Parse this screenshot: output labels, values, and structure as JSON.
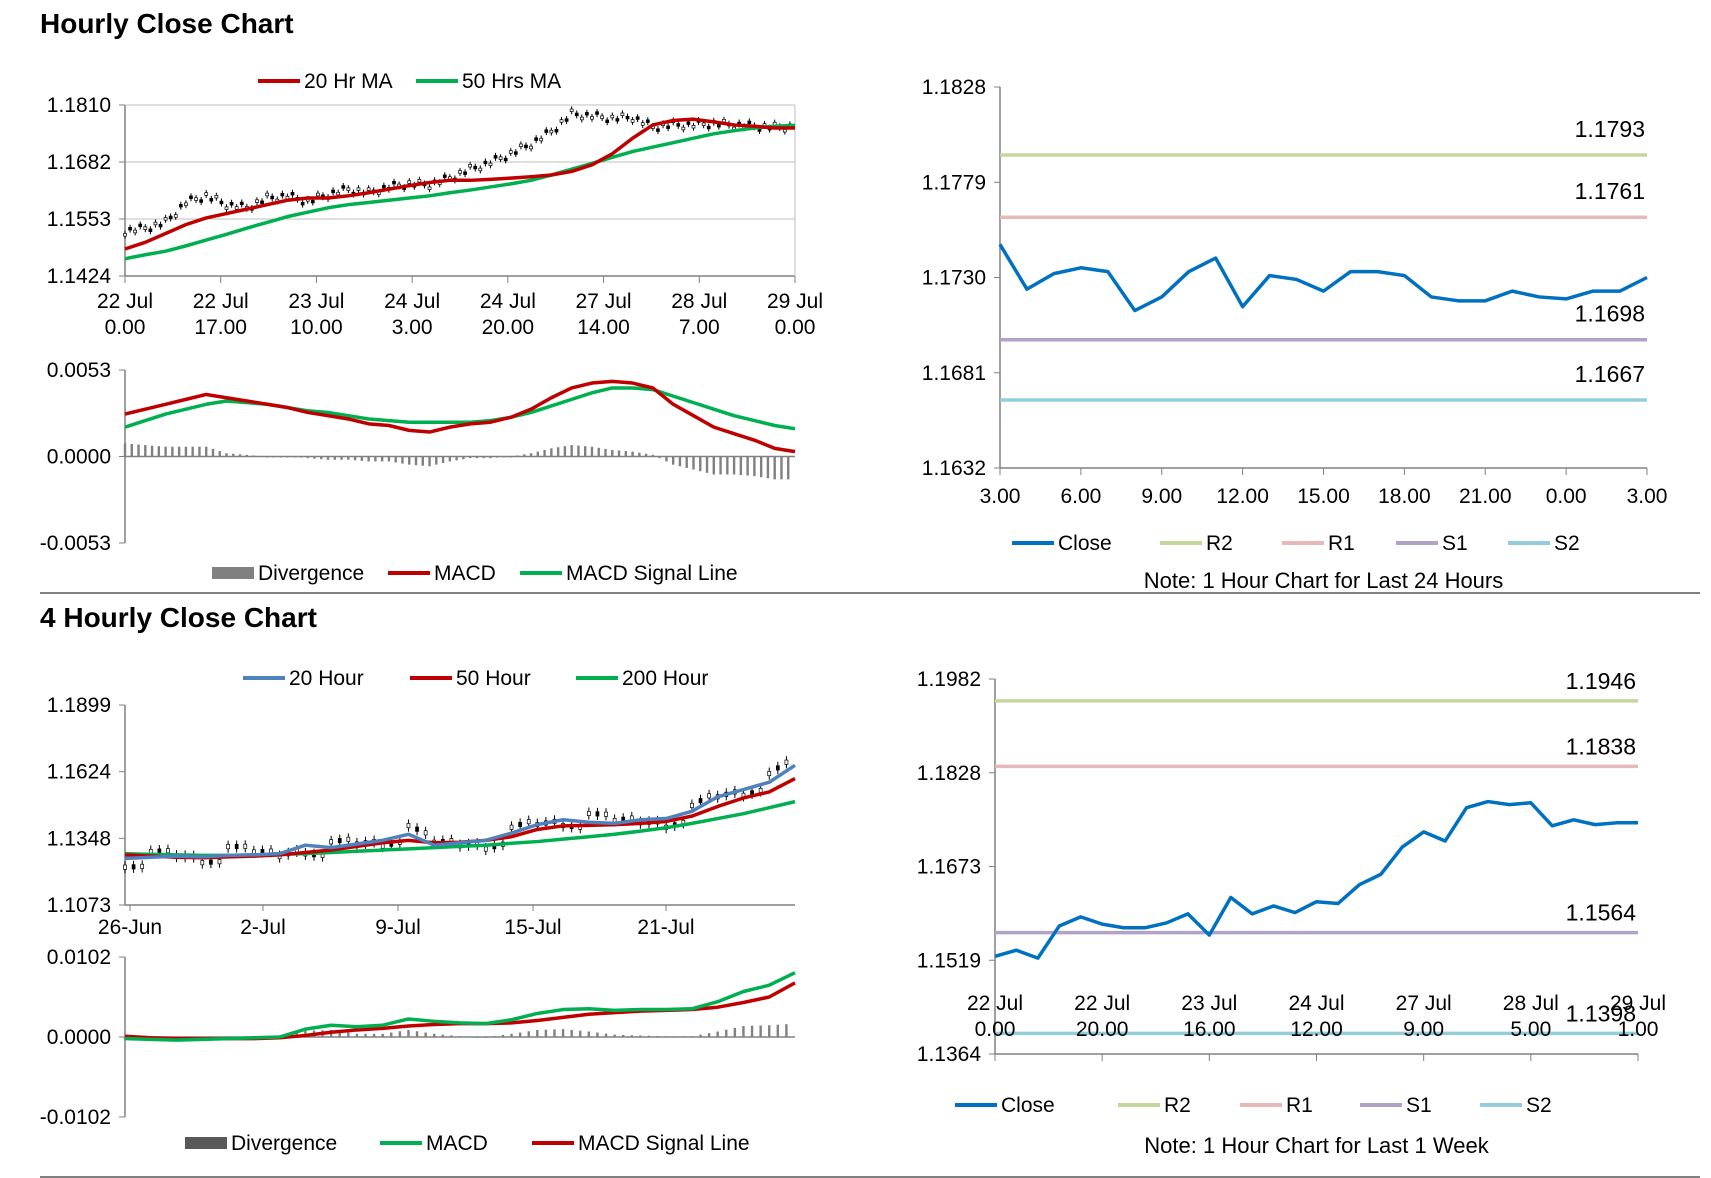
{
  "sections": {
    "hourly_title": "Hourly Close Chart",
    "four_hourly_title": "4 Hourly Close Chart"
  },
  "colors": {
    "ma20": "#c00000",
    "ma50": "#00b050",
    "close": "#0070c0",
    "r2": "#c3d69b",
    "r1": "#e6b9b8",
    "s1": "#b3a2c7",
    "s2": "#93cddd",
    "blue20": "#4f81bd",
    "divergence": "#808080",
    "axis": "#808080"
  },
  "chart_data": [
    {
      "id": "hourly-price",
      "type": "line",
      "title": "",
      "legend": [
        "20 Hr MA",
        "50 Hrs MA"
      ],
      "legend_placement": "top",
      "y_ticks": [
        "1.1810",
        "1.1682",
        "1.1553",
        "1.1424"
      ],
      "ylim": [
        1.1424,
        1.181
      ],
      "x_ticks": [
        [
          "22 Jul",
          "0.00"
        ],
        [
          "22 Jul",
          "17.00"
        ],
        [
          "23 Jul",
          "10.00"
        ],
        [
          "24 Jul",
          "3.00"
        ],
        [
          "24 Jul",
          "20.00"
        ],
        [
          "27 Jul",
          "14.00"
        ],
        [
          "28 Jul",
          "7.00"
        ],
        [
          "29 Jul",
          "0.00"
        ]
      ],
      "grid": true,
      "series": [
        {
          "name": "20 Hr MA",
          "values": [
            1.1485,
            1.15,
            1.152,
            1.154,
            1.1555,
            1.1565,
            1.1575,
            1.1585,
            1.1595,
            1.16,
            1.16,
            1.1605,
            1.1612,
            1.162,
            1.1628,
            1.1635,
            1.164,
            1.164,
            1.1642,
            1.1645,
            1.1648,
            1.1652,
            1.166,
            1.1675,
            1.17,
            1.1735,
            1.1765,
            1.1775,
            1.1778,
            1.1772,
            1.1765,
            1.1762,
            1.1758,
            1.1758
          ]
        },
        {
          "name": "50 Hrs MA",
          "values": [
            1.1463,
            1.1472,
            1.148,
            1.1492,
            1.1505,
            1.1518,
            1.1532,
            1.1545,
            1.1558,
            1.1568,
            1.1578,
            1.1585,
            1.159,
            1.1595,
            1.16,
            1.1605,
            1.1612,
            1.1618,
            1.1625,
            1.1632,
            1.164,
            1.1652,
            1.1665,
            1.1678,
            1.1692,
            1.1705,
            1.1715,
            1.1725,
            1.1735,
            1.1745,
            1.1752,
            1.1758,
            1.1762,
            1.1764
          ]
        },
        {
          "name": "candles",
          "values": [
            1.1525,
            1.1532,
            1.1545,
            1.159,
            1.1605,
            1.1585,
            1.1578,
            1.16,
            1.1605,
            1.1592,
            1.1608,
            1.162,
            1.1612,
            1.1625,
            1.1632,
            1.163,
            1.1645,
            1.1665,
            1.168,
            1.17,
            1.1722,
            1.175,
            1.179,
            1.1785,
            1.178,
            1.1782,
            1.176,
            1.1765,
            1.1765,
            1.1768,
            1.1765,
            1.1762,
            1.176,
            1.176
          ]
        }
      ]
    },
    {
      "id": "hourly-macd",
      "type": "line",
      "title": "",
      "legend": [
        "Divergence",
        "MACD",
        "MACD Signal Line"
      ],
      "legend_placement": "bottom",
      "y_ticks": [
        "0.0053",
        "0.0000",
        "-0.0053"
      ],
      "ylim": [
        -0.0053,
        0.0053
      ],
      "series": [
        {
          "name": "MACD",
          "values": [
            0.0026,
            0.0029,
            0.0032,
            0.0035,
            0.0038,
            0.0036,
            0.0034,
            0.0032,
            0.003,
            0.0027,
            0.0025,
            0.0023,
            0.002,
            0.0019,
            0.0016,
            0.0015,
            0.0018,
            0.002,
            0.0021,
            0.0024,
            0.0029,
            0.0036,
            0.0042,
            0.0045,
            0.0046,
            0.0045,
            0.0042,
            0.0032,
            0.0025,
            0.0018,
            0.0014,
            0.001,
            0.0005,
            0.0003
          ]
        },
        {
          "name": "MACD Signal Line",
          "values": [
            0.0018,
            0.0022,
            0.0026,
            0.0029,
            0.0032,
            0.0034,
            0.0033,
            0.0032,
            0.003,
            0.0028,
            0.0027,
            0.0025,
            0.0023,
            0.0022,
            0.0021,
            0.0021,
            0.0021,
            0.0021,
            0.0022,
            0.0024,
            0.0027,
            0.0031,
            0.0035,
            0.0039,
            0.0042,
            0.0042,
            0.0041,
            0.0037,
            0.0033,
            0.0029,
            0.0025,
            0.0022,
            0.0019,
            0.0017
          ]
        },
        {
          "name": "Divergence",
          "values": [
            0.0008,
            0.0007,
            0.0006,
            0.0006,
            0.0006,
            0.0002,
            0.0001,
            0.0,
            0.0,
            -0.0001,
            -0.0002,
            -0.0002,
            -0.0003,
            -0.0003,
            -0.0005,
            -0.0006,
            -0.0003,
            -0.0001,
            -0.0001,
            0.0,
            0.0002,
            0.0005,
            0.0007,
            0.0006,
            0.0004,
            0.0003,
            0.0001,
            -0.0005,
            -0.0008,
            -0.0011,
            -0.0011,
            -0.0012,
            -0.0014,
            -0.0014
          ]
        }
      ]
    },
    {
      "id": "hourly-close-24h",
      "type": "line",
      "title": "",
      "note": "Note: 1 Hour Chart for Last 24 Hours",
      "legend": [
        "Close",
        "R2",
        "R1",
        "S1",
        "S2"
      ],
      "legend_placement": "bottom",
      "y_ticks": [
        "1.1828",
        "1.1779",
        "1.1730",
        "1.1681",
        "1.1632"
      ],
      "ylim": [
        1.1632,
        1.1828
      ],
      "x_ticks": [
        "3.00",
        "6.00",
        "9.00",
        "12.00",
        "15.00",
        "18.00",
        "21.00",
        "0.00",
        "3.00"
      ],
      "levels": {
        "R2": "1.1793",
        "R1": "1.1761",
        "S1": "1.1698",
        "S2": "1.1667"
      },
      "series": [
        {
          "name": "Close",
          "x": [
            3,
            4,
            5,
            6,
            7,
            8,
            9,
            10,
            11,
            12,
            13,
            14,
            15,
            16,
            17,
            18,
            19,
            20,
            21,
            22,
            23,
            24,
            25,
            26,
            27
          ],
          "values": [
            1.1747,
            1.1724,
            1.1732,
            1.1735,
            1.1733,
            1.1713,
            1.172,
            1.1733,
            1.174,
            1.1715,
            1.1731,
            1.1729,
            1.1723,
            1.1733,
            1.1733,
            1.1731,
            1.172,
            1.1718,
            1.1718,
            1.1723,
            1.172,
            1.1719,
            1.1723,
            1.1723,
            1.173
          ]
        },
        {
          "name": "R2",
          "values": [
            1.1793
          ]
        },
        {
          "name": "R1",
          "values": [
            1.1761
          ]
        },
        {
          "name": "S1",
          "values": [
            1.1698
          ]
        },
        {
          "name": "S2",
          "values": [
            1.1667
          ]
        }
      ]
    },
    {
      "id": "four-hourly-price",
      "type": "line",
      "title": "",
      "legend": [
        "20 Hour",
        "50 Hour",
        "200 Hour"
      ],
      "legend_placement": "top",
      "y_ticks": [
        "1.1899",
        "1.1624",
        "1.1348",
        "1.1073"
      ],
      "ylim": [
        1.1073,
        1.1899
      ],
      "x_ticks": [
        "26-Jun",
        "2-Jul",
        "9-Jul",
        "15-Jul",
        "21-Jul"
      ],
      "series": [
        {
          "name": "20 Hour",
          "values": [
            1.1265,
            1.127,
            1.1275,
            1.1272,
            1.1278,
            1.128,
            1.1285,
            1.132,
            1.131,
            1.1325,
            1.134,
            1.1365,
            1.132,
            1.133,
            1.134,
            1.137,
            1.1405,
            1.1425,
            1.1415,
            1.141,
            1.1425,
            1.143,
            1.146,
            1.152,
            1.155,
            1.158,
            1.165
          ]
        },
        {
          "name": "50 Hour",
          "values": [
            1.128,
            1.1275,
            1.127,
            1.1268,
            1.1272,
            1.1275,
            1.128,
            1.129,
            1.13,
            1.1315,
            1.133,
            1.134,
            1.133,
            1.1332,
            1.134,
            1.1355,
            1.1385,
            1.14,
            1.1402,
            1.1405,
            1.141,
            1.1418,
            1.144,
            1.148,
            1.1515,
            1.154,
            1.1595
          ]
        },
        {
          "name": "200 Hour",
          "values": [
            1.1285,
            1.1282,
            1.128,
            1.1278,
            1.1278,
            1.128,
            1.1282,
            1.1285,
            1.129,
            1.1295,
            1.13,
            1.1305,
            1.131,
            1.1315,
            1.132,
            1.1328,
            1.1335,
            1.1345,
            1.1355,
            1.1365,
            1.1378,
            1.1392,
            1.141,
            1.143,
            1.145,
            1.1475,
            1.15
          ]
        }
      ]
    },
    {
      "id": "four-hourly-macd",
      "type": "line",
      "title": "",
      "legend": [
        "Divergence",
        "MACD",
        "MACD Signal Line"
      ],
      "legend_placement": "bottom",
      "y_ticks": [
        "0.0102",
        "0.0000",
        "-0.0102"
      ],
      "ylim": [
        -0.0102,
        0.0102
      ],
      "series": [
        {
          "name": "MACD",
          "values": [
            -0.0002,
            -0.0003,
            -0.0004,
            -0.0003,
            -0.0002,
            -0.0001,
            0.0,
            0.001,
            0.0015,
            0.0013,
            0.0015,
            0.0023,
            0.002,
            0.0018,
            0.0017,
            0.0022,
            0.003,
            0.0035,
            0.0036,
            0.0034,
            0.0035,
            0.0035,
            0.0036,
            0.0045,
            0.0058,
            0.0066,
            0.0082
          ]
        },
        {
          "name": "MACD Signal Line",
          "values": [
            0.0001,
            -0.0001,
            -0.0002,
            -0.0002,
            -0.0002,
            -0.0002,
            -0.0001,
            0.0002,
            0.0006,
            0.0009,
            0.0011,
            0.0014,
            0.0016,
            0.0017,
            0.0017,
            0.0018,
            0.0021,
            0.0025,
            0.0029,
            0.0031,
            0.0033,
            0.0034,
            0.0035,
            0.0038,
            0.0044,
            0.0051,
            0.0069
          ]
        },
        {
          "name": "Divergence",
          "values": [
            -0.0003,
            -0.0002,
            -0.0002,
            -0.0001,
            0.0,
            0.0001,
            0.0001,
            0.0008,
            0.0009,
            0.0004,
            0.0004,
            0.0009,
            0.0004,
            0.0001,
            0.0,
            0.0004,
            0.0009,
            0.001,
            0.0007,
            0.0003,
            0.0002,
            0.0001,
            0.0001,
            0.0007,
            0.0014,
            0.0015,
            0.0017
          ]
        }
      ]
    },
    {
      "id": "hourly-close-1w",
      "type": "line",
      "title": "",
      "note": "Note: 1 Hour Chart for Last 1 Week",
      "legend": [
        "Close",
        "R2",
        "R1",
        "S1",
        "S2"
      ],
      "legend_placement": "bottom",
      "y_ticks": [
        "1.1982",
        "1.1828",
        "1.1673",
        "1.1519",
        "1.1364"
      ],
      "ylim": [
        1.1364,
        1.1982
      ],
      "x_ticks": [
        [
          "22 Jul",
          "0.00"
        ],
        [
          "22 Jul",
          "20.00"
        ],
        [
          "23 Jul",
          "16.00"
        ],
        [
          "24 Jul",
          "12.00"
        ],
        [
          "27 Jul",
          "9.00"
        ],
        [
          "28 Jul",
          "5.00"
        ],
        [
          "29 Jul",
          "1.00"
        ]
      ],
      "levels": {
        "R2": "1.1946",
        "R1": "1.1838",
        "S1": "1.1564",
        "S2": "1.1398"
      },
      "series": [
        {
          "name": "Close",
          "values": [
            1.1525,
            1.1535,
            1.1522,
            1.1575,
            1.159,
            1.1578,
            1.1572,
            1.1572,
            1.158,
            1.1595,
            1.156,
            1.1622,
            1.1595,
            1.1608,
            1.1597,
            1.1615,
            1.1612,
            1.1643,
            1.166,
            1.1705,
            1.173,
            1.1715,
            1.177,
            1.178,
            1.1775,
            1.1778,
            1.174,
            1.175,
            1.1742,
            1.1745,
            1.1745
          ]
        },
        {
          "name": "R2",
          "values": [
            1.1946
          ]
        },
        {
          "name": "R1",
          "values": [
            1.1838
          ]
        },
        {
          "name": "S1",
          "values": [
            1.1564
          ]
        },
        {
          "name": "S2",
          "values": [
            1.1398
          ]
        }
      ]
    }
  ]
}
